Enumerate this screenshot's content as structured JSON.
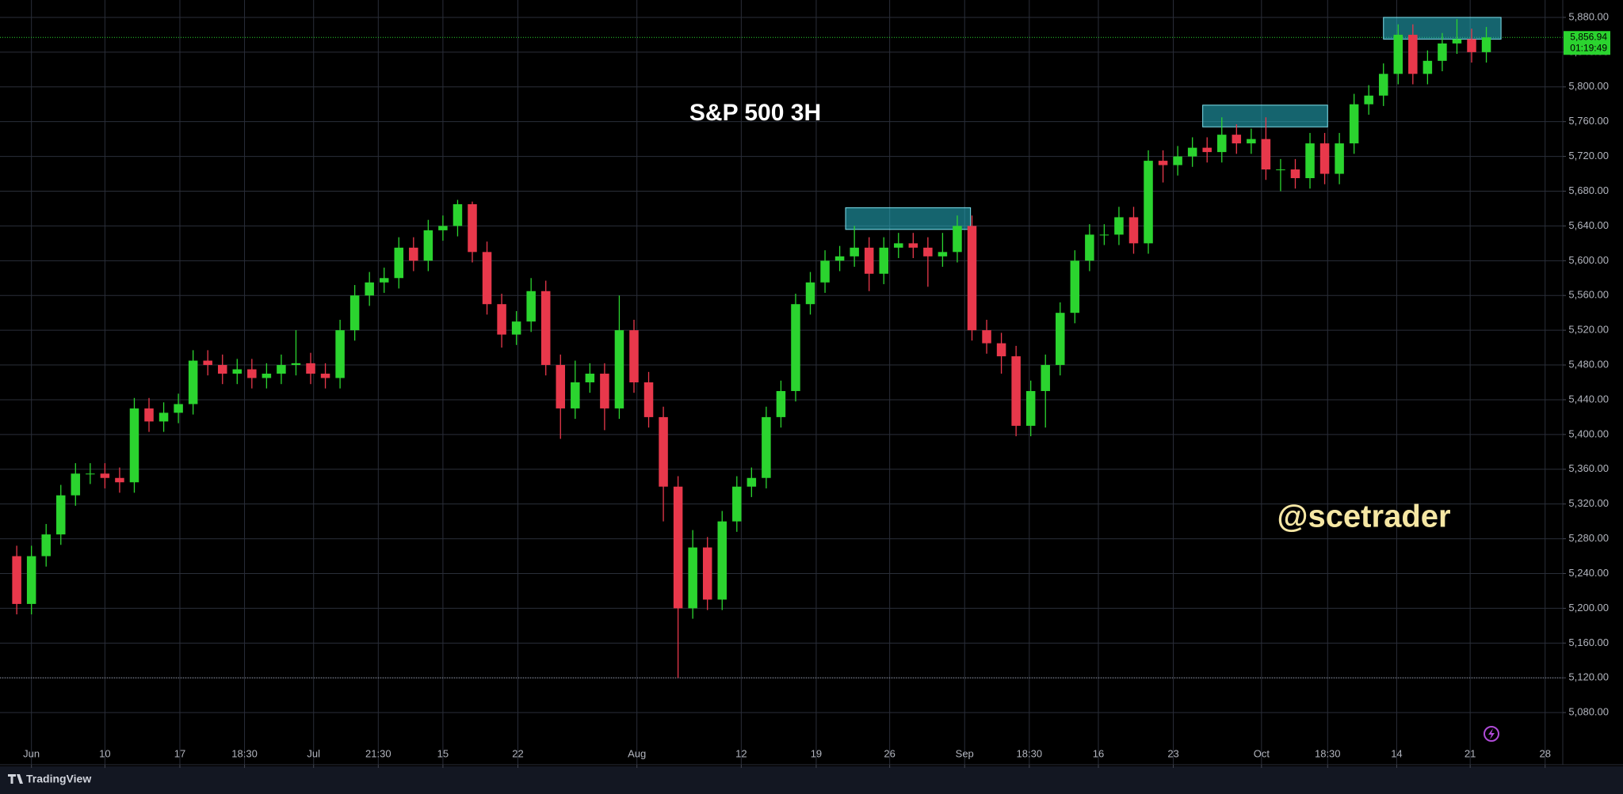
{
  "chart_data": {
    "type": "candlestick",
    "title": "S&P 500 3H",
    "watermark": "@scetrader",
    "up_color": "#2bd42f",
    "down_color": "#e8384b",
    "grid": true,
    "x": [
      -1,
      0,
      1,
      2,
      3,
      4,
      5,
      6,
      7,
      8,
      9,
      10,
      11,
      12,
      13,
      14,
      15,
      16,
      17,
      18,
      19,
      20,
      21,
      22,
      23,
      24,
      25,
      26,
      27,
      28,
      29,
      30,
      31,
      32,
      33,
      34,
      35,
      36,
      37,
      38,
      39,
      40,
      41,
      42,
      43,
      44,
      45,
      46,
      47,
      48,
      49,
      50,
      51,
      52,
      53,
      54,
      55,
      56,
      57,
      58,
      59,
      60,
      61,
      62,
      63,
      64,
      65,
      66,
      67,
      68,
      69,
      70,
      71,
      72,
      73,
      74,
      75,
      76,
      77,
      78,
      79,
      80,
      81,
      82,
      83,
      84,
      85,
      86,
      87,
      88,
      89,
      90,
      91,
      92,
      93,
      94,
      95,
      96,
      97,
      98,
      99
    ],
    "open": [
      5260,
      5205,
      5260,
      5285,
      5330,
      5355,
      5355,
      5350,
      5345,
      5430,
      5415,
      5425,
      5435,
      5485,
      5480,
      5470,
      5475,
      5465,
      5470,
      5480,
      5482,
      5470,
      5465,
      5520,
      5560,
      5575,
      5580,
      5615,
      5600,
      5635,
      5640,
      5665,
      5610,
      5550,
      5515,
      5530,
      5565,
      5480,
      5430,
      5460,
      5470,
      5430,
      5520,
      5460,
      5420,
      5340,
      5200,
      5270,
      5210,
      5300,
      5340,
      5350,
      5420,
      5450,
      5550,
      5575,
      5600,
      5605,
      5615,
      5585,
      5615,
      5620,
      5615,
      5605,
      5610,
      5640,
      5520,
      5505,
      5490,
      5410,
      5450,
      5480,
      5540,
      5600,
      5630,
      5630,
      5650,
      5620,
      5715,
      5710,
      5720,
      5730,
      5725,
      5745,
      5735,
      5740,
      5705,
      5705,
      5695,
      5735,
      5700,
      5735,
      5780,
      5790,
      5815,
      5860,
      5815,
      5830,
      5850,
      5855,
      5840
    ],
    "high": [
      5272,
      5272,
      5297,
      5342,
      5367,
      5367,
      5367,
      5362,
      5442,
      5442,
      5437,
      5447,
      5497,
      5497,
      5492,
      5487,
      5487,
      5482,
      5492,
      5520,
      5494,
      5482,
      5532,
      5572,
      5587,
      5592,
      5627,
      5627,
      5647,
      5652,
      5670,
      5668,
      5622,
      5562,
      5542,
      5580,
      5577,
      5492,
      5485,
      5482,
      5482,
      5560,
      5532,
      5472,
      5432,
      5352,
      5290,
      5282,
      5312,
      5352,
      5362,
      5432,
      5462,
      5562,
      5587,
      5612,
      5617,
      5640,
      5627,
      5627,
      5632,
      5632,
      5627,
      5632,
      5652,
      5652,
      5532,
      5517,
      5502,
      5462,
      5492,
      5552,
      5612,
      5642,
      5642,
      5662,
      5662,
      5727,
      5727,
      5732,
      5742,
      5742,
      5765,
      5757,
      5752,
      5765,
      5717,
      5717,
      5747,
      5747,
      5747,
      5792,
      5802,
      5827,
      5872,
      5872,
      5842,
      5862,
      5878,
      5867,
      5869
    ],
    "low": [
      5193,
      5193,
      5248,
      5273,
      5318,
      5343,
      5338,
      5333,
      5333,
      5403,
      5403,
      5413,
      5423,
      5468,
      5458,
      5458,
      5453,
      5453,
      5458,
      5468,
      5458,
      5453,
      5453,
      5508,
      5548,
      5563,
      5568,
      5588,
      5588,
      5623,
      5628,
      5598,
      5538,
      5500,
      5503,
      5518,
      5468,
      5395,
      5418,
      5448,
      5405,
      5418,
      5448,
      5408,
      5300,
      5120,
      5188,
      5198,
      5198,
      5288,
      5328,
      5338,
      5408,
      5438,
      5538,
      5563,
      5588,
      5593,
      5565,
      5573,
      5603,
      5603,
      5570,
      5593,
      5598,
      5508,
      5493,
      5470,
      5398,
      5398,
      5408,
      5468,
      5528,
      5588,
      5618,
      5618,
      5608,
      5608,
      5690,
      5698,
      5708,
      5713,
      5713,
      5723,
      5723,
      5693,
      5680,
      5683,
      5683,
      5688,
      5688,
      5723,
      5768,
      5778,
      5803,
      5803,
      5803,
      5818,
      5838,
      5828,
      5828
    ],
    "close": [
      5205,
      5260,
      5285,
      5330,
      5355,
      5355,
      5350,
      5345,
      5430,
      5415,
      5425,
      5435,
      5485,
      5480,
      5470,
      5475,
      5465,
      5470,
      5480,
      5482,
      5470,
      5465,
      5520,
      5560,
      5575,
      5580,
      5615,
      5600,
      5635,
      5640,
      5665,
      5610,
      5550,
      5515,
      5530,
      5565,
      5480,
      5430,
      5460,
      5470,
      5430,
      5520,
      5460,
      5420,
      5340,
      5200,
      5270,
      5210,
      5300,
      5340,
      5350,
      5420,
      5450,
      5550,
      5575,
      5600,
      5605,
      5615,
      5585,
      5615,
      5620,
      5615,
      5605,
      5610,
      5640,
      5520,
      5505,
      5490,
      5410,
      5450,
      5480,
      5540,
      5600,
      5630,
      5630,
      5650,
      5620,
      5715,
      5710,
      5720,
      5730,
      5725,
      5745,
      5735,
      5740,
      5705,
      5705,
      5695,
      5735,
      5700,
      5735,
      5780,
      5790,
      5815,
      5860,
      5815,
      5830,
      5850,
      5855,
      5840,
      5857
    ],
    "xlim": [
      -1.6,
      103.5
    ],
    "xticks": [
      {
        "value": 0,
        "label": "Jun"
      },
      {
        "value": 5,
        "label": "10"
      },
      {
        "value": 10.1,
        "label": "17"
      },
      {
        "value": 14.5,
        "label": "18:30"
      },
      {
        "value": 19.2,
        "label": "Jul"
      },
      {
        "value": 23.6,
        "label": "21:30"
      },
      {
        "value": 28,
        "label": "15"
      },
      {
        "value": 33.1,
        "label": "22"
      },
      {
        "value": 41.2,
        "label": "Aug"
      },
      {
        "value": 48.3,
        "label": "12"
      },
      {
        "value": 53.4,
        "label": "19"
      },
      {
        "value": 58.4,
        "label": "26"
      },
      {
        "value": 63.5,
        "label": "Sep"
      },
      {
        "value": 67.9,
        "label": "18:30"
      },
      {
        "value": 72.6,
        "label": "16"
      },
      {
        "value": 77.7,
        "label": "23"
      },
      {
        "value": 83.7,
        "label": "Oct"
      },
      {
        "value": 88.2,
        "label": "18:30"
      },
      {
        "value": 92.9,
        "label": "14"
      },
      {
        "value": 97.9,
        "label": "21"
      },
      {
        "value": 103,
        "label": "28"
      }
    ],
    "ylim": [
      5020,
      5900
    ],
    "yticks": [
      {
        "value": 5080,
        "label": "5,080.00"
      },
      {
        "value": 5120,
        "label": "5,120.00"
      },
      {
        "value": 5160,
        "label": "5,160.00"
      },
      {
        "value": 5200,
        "label": "5,200.00"
      },
      {
        "value": 5240,
        "label": "5,240.00"
      },
      {
        "value": 5280,
        "label": "5,280.00"
      },
      {
        "value": 5320,
        "label": "5,320.00"
      },
      {
        "value": 5360,
        "label": "5,360.00"
      },
      {
        "value": 5400,
        "label": "5,400.00"
      },
      {
        "value": 5440,
        "label": "5,440.00"
      },
      {
        "value": 5480,
        "label": "5,480.00"
      },
      {
        "value": 5520,
        "label": "5,520.00"
      },
      {
        "value": 5560,
        "label": "5,560.00"
      },
      {
        "value": 5600,
        "label": "5,600.00"
      },
      {
        "value": 5640,
        "label": "5,640.00"
      },
      {
        "value": 5680,
        "label": "5,680.00"
      },
      {
        "value": 5720,
        "label": "5,720.00"
      },
      {
        "value": 5760,
        "label": "5,760.00"
      },
      {
        "value": 5800,
        "label": "5,800.00"
      },
      {
        "value": 5840,
        "label": "5,840.00"
      },
      {
        "value": 5880,
        "label": "5,880.00"
      }
    ],
    "zones": [
      {
        "x": [
          55.4,
          63.9
        ],
        "y": [
          5636,
          5661
        ]
      },
      {
        "x": [
          79.7,
          88.2
        ],
        "y": [
          5754,
          5779
        ]
      },
      {
        "x": [
          92,
          100
        ],
        "y": [
          5855,
          5880
        ]
      }
    ],
    "zone_color": "#26b7c9",
    "price_lines": [
      5120
    ],
    "last_price": {
      "value": 5856.94,
      "label": "5,856.94"
    },
    "countdown": "01:19:49"
  },
  "footer": {
    "brand": "TradingView"
  }
}
